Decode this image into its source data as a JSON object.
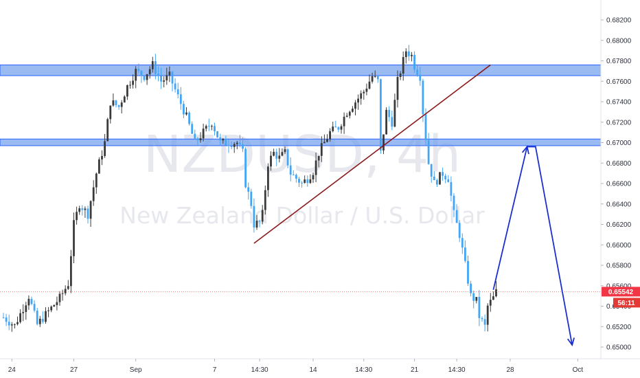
{
  "watermark": {
    "symbol": "NZDUSD, 4h",
    "description": "New Zealand Dollar / U.S. Dollar"
  },
  "price_tag": {
    "last_price": "0.65542",
    "countdown": "56:11"
  },
  "colors": {
    "up_candle": "#3a3a3a",
    "down_candle": "#42a5f5",
    "zone_fill": "#6d9eeb",
    "zone_border": "#2962ff",
    "trendline": "#8b1a1a",
    "projection": "#1a2fcc",
    "price_line": "#e57373",
    "tag_bg": "#f23645",
    "countdown_bg": "#e53935"
  },
  "chart_data": {
    "type": "candlestick",
    "symbol": "NZDUSD",
    "timeframe": "4h",
    "ylim": [
      0.6494,
      0.6834
    ],
    "y_ticks": [
      "0.68200",
      "0.68000",
      "0.67800",
      "0.67600",
      "0.67400",
      "0.67200",
      "0.67000",
      "0.66800",
      "0.66600",
      "0.66400",
      "0.66200",
      "0.66000",
      "0.65800",
      "0.65600",
      "0.65400",
      "0.65200",
      "0.65000"
    ],
    "x_ticks": [
      {
        "label": "24",
        "index": 3
      },
      {
        "label": "27",
        "index": 25
      },
      {
        "label": "Sep",
        "index": 47
      },
      {
        "label": "7",
        "index": 75
      },
      {
        "label": "14:30",
        "index": 91
      },
      {
        "label": "14",
        "index": 110
      },
      {
        "label": "14:30",
        "index": 128
      },
      {
        "label": "21",
        "index": 146
      },
      {
        "label": "14:30",
        "index": 161
      },
      {
        "label": "28",
        "index": 180
      },
      {
        "label": "Oct",
        "index": 204
      }
    ],
    "anchors": [
      [
        0,
        0.6529
      ],
      [
        4,
        0.6521
      ],
      [
        9,
        0.655
      ],
      [
        12,
        0.6522
      ],
      [
        16,
        0.6535
      ],
      [
        20,
        0.6548
      ],
      [
        23,
        0.6562
      ],
      [
        25,
        0.662
      ],
      [
        27,
        0.664
      ],
      [
        30,
        0.663
      ],
      [
        33,
        0.667
      ],
      [
        36,
        0.67
      ],
      [
        38,
        0.674
      ],
      [
        41,
        0.6735
      ],
      [
        44,
        0.6755
      ],
      [
        47,
        0.677
      ],
      [
        50,
        0.6765
      ],
      [
        53,
        0.6776
      ],
      [
        56,
        0.676
      ],
      [
        59,
        0.6765
      ],
      [
        62,
        0.6745
      ],
      [
        65,
        0.6725
      ],
      [
        68,
        0.67
      ],
      [
        71,
        0.671
      ],
      [
        74,
        0.672
      ],
      [
        77,
        0.67
      ],
      [
        80,
        0.67
      ],
      [
        83,
        0.67
      ],
      [
        85,
        0.669
      ],
      [
        86,
        0.666
      ],
      [
        88,
        0.664
      ],
      [
        89,
        0.662
      ],
      [
        91,
        0.6622
      ],
      [
        92,
        0.663
      ],
      [
        94,
        0.668
      ],
      [
        96,
        0.669
      ],
      [
        98,
        0.6685
      ],
      [
        100,
        0.669
      ],
      [
        102,
        0.667
      ],
      [
        104,
        0.6665
      ],
      [
        106,
        0.666
      ],
      [
        108,
        0.6665
      ],
      [
        110,
        0.6672
      ],
      [
        112,
        0.669
      ],
      [
        114,
        0.67
      ],
      [
        116,
        0.671
      ],
      [
        119,
        0.6715
      ],
      [
        122,
        0.673
      ],
      [
        125,
        0.674
      ],
      [
        128,
        0.675
      ],
      [
        131,
        0.6765
      ],
      [
        133,
        0.676
      ],
      [
        134,
        0.669
      ],
      [
        136,
        0.673
      ],
      [
        138,
        0.672
      ],
      [
        140,
        0.676
      ],
      [
        142,
        0.678
      ],
      [
        143,
        0.679
      ],
      [
        145,
        0.6785
      ],
      [
        146,
        0.6775
      ],
      [
        148,
        0.6765
      ],
      [
        149,
        0.673
      ],
      [
        151,
        0.668
      ],
      [
        153,
        0.666
      ],
      [
        156,
        0.667
      ],
      [
        158,
        0.6665
      ],
      [
        160,
        0.663
      ],
      [
        162,
        0.661
      ],
      [
        164,
        0.658
      ],
      [
        166,
        0.655
      ],
      [
        168,
        0.6545
      ],
      [
        169,
        0.653
      ],
      [
        171,
        0.652
      ],
      [
        172,
        0.654
      ],
      [
        174,
        0.6548
      ],
      [
        175,
        0.6554
      ]
    ],
    "resistance_zones": [
      {
        "from": 0.67655,
        "to": 0.6776
      },
      {
        "from": 0.6697,
        "to": 0.67035
      }
    ],
    "trendline": {
      "from": {
        "index": 89,
        "price": 0.66015
      },
      "to": {
        "index": 173,
        "price": 0.6776
      }
    },
    "projection_path": [
      {
        "index": 174,
        "price": 0.6556
      },
      {
        "index": 186,
        "price": 0.6696
      },
      {
        "index": 189,
        "price": 0.6696
      },
      {
        "index": 202,
        "price": 0.6502
      }
    ],
    "last_price": 0.65542
  }
}
